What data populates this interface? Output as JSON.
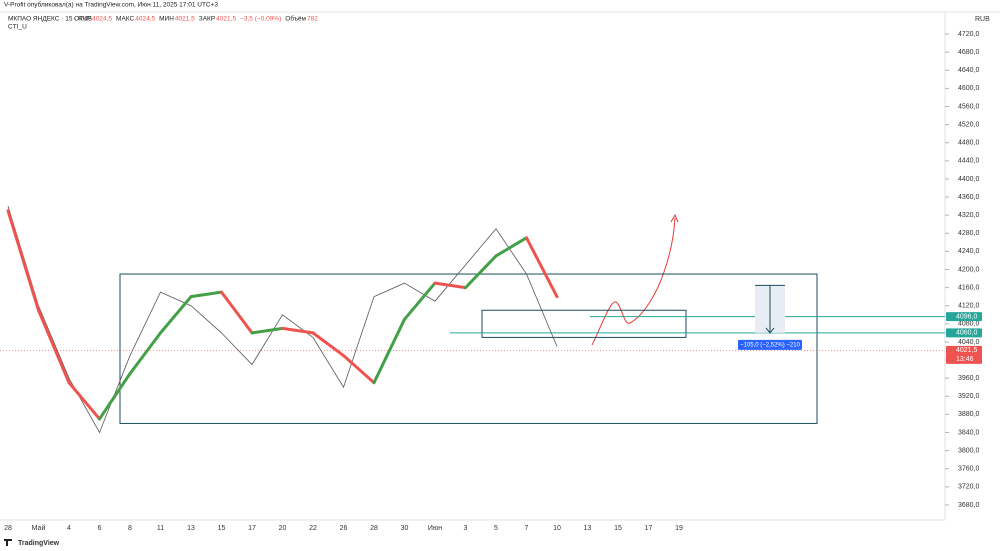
{
  "header": {
    "author_line": "V-Profit опубликовал(а) на TradingView.com, Июн 11, 2025 17:01 UTC+3",
    "symbol": "МКПАО ЯНДЕКС · 15 · RUS",
    "ohlc": [
      {
        "label": "ОТКР",
        "value": "4024,5"
      },
      {
        "label": "МАКС",
        "value": "4024,5"
      },
      {
        "label": "МИН",
        "value": "4021,5"
      },
      {
        "label": "ЗАКР",
        "value": "4021,5"
      }
    ],
    "change": "−3,5 (−0,09%)",
    "volume_label": "Объём",
    "volume": "782",
    "indicator": "CTI_U"
  },
  "chart_data": {
    "type": "line",
    "currency": "RUB",
    "categories": [
      "28",
      "Май",
      "4",
      "6",
      "8",
      "11",
      "13",
      "15",
      "17",
      "20",
      "22",
      "26",
      "28",
      "30",
      "Июн",
      "3",
      "5",
      "7",
      "10",
      "13",
      "15",
      "17",
      "19"
    ],
    "series": [
      {
        "color": "#555555",
        "values": [
          4340,
          4120,
          3960,
          3840,
          4010,
          4150,
          4120,
          4060,
          3990,
          4100,
          4050,
          3940,
          4140,
          4170,
          4130,
          4210,
          4290,
          4190,
          4030,
          null,
          null,
          null,
          null
        ]
      },
      {
        "name": "CTI_U",
        "up_color": "#43a047",
        "down_color": "#ef5350",
        "values": [
          4330,
          4110,
          3950,
          3870,
          3970,
          4060,
          4140,
          4150,
          4060,
          4070,
          4060,
          4010,
          3950,
          4090,
          4170,
          4160,
          4230,
          4270,
          4140,
          null,
          null,
          null,
          null
        ]
      }
    ],
    "ylim": [
      3660,
      4740
    ],
    "yticks": [
      {
        "value": 3680,
        "label": "3680,0"
      },
      {
        "value": 3720,
        "label": "3720,0"
      },
      {
        "value": 3760,
        "label": "3760,0"
      },
      {
        "value": 3800,
        "label": "3800,0"
      },
      {
        "value": 3840,
        "label": "3840,0"
      },
      {
        "value": 3880,
        "label": "3880,0"
      },
      {
        "value": 3920,
        "label": "3920,0"
      },
      {
        "value": 3960,
        "label": "3960,0"
      },
      {
        "value": 4000,
        "label": "4000,0"
      },
      {
        "value": 4040,
        "label": "4040,0"
      },
      {
        "value": 4080,
        "label": "4080,0"
      },
      {
        "value": 4120,
        "label": "4120,0"
      },
      {
        "value": 4160,
        "label": "4160,0"
      },
      {
        "value": 4200,
        "label": "4200,0"
      },
      {
        "value": 4240,
        "label": "4240,0"
      },
      {
        "value": 4280,
        "label": "4280,0"
      },
      {
        "value": 4320,
        "label": "4320,0"
      },
      {
        "value": 4360,
        "label": "4360,0"
      },
      {
        "value": 4400,
        "label": "4400,0"
      },
      {
        "value": 4440,
        "label": "4440,0"
      },
      {
        "value": 4480,
        "label": "4480,0"
      },
      {
        "value": 4520,
        "label": "4520,0"
      },
      {
        "value": 4560,
        "label": "4560,0"
      },
      {
        "value": 4600,
        "label": "4600,0"
      },
      {
        "value": 4640,
        "label": "4640,0"
      },
      {
        "value": 4680,
        "label": "4680,0"
      },
      {
        "value": 4720,
        "label": "4720,0"
      }
    ],
    "levels": [
      {
        "value": 4096,
        "label": "4096,0",
        "color": "#26a69a"
      },
      {
        "value": 4060,
        "label": "4060,0",
        "color": "#26a69a"
      }
    ],
    "last_price": {
      "value": 4021.5,
      "label": "4021,5",
      "color": "#ef5350"
    },
    "countdown": "13:46",
    "measure": {
      "from": 4165,
      "to": 4060,
      "label": "−105,0 (−2,52%) −210"
    },
    "zones": [
      {
        "ylim": [
          3860,
          4190
        ]
      },
      {
        "ylim": [
          4050,
          4110
        ]
      }
    ]
  },
  "footer": {
    "brand": "TradingView"
  }
}
